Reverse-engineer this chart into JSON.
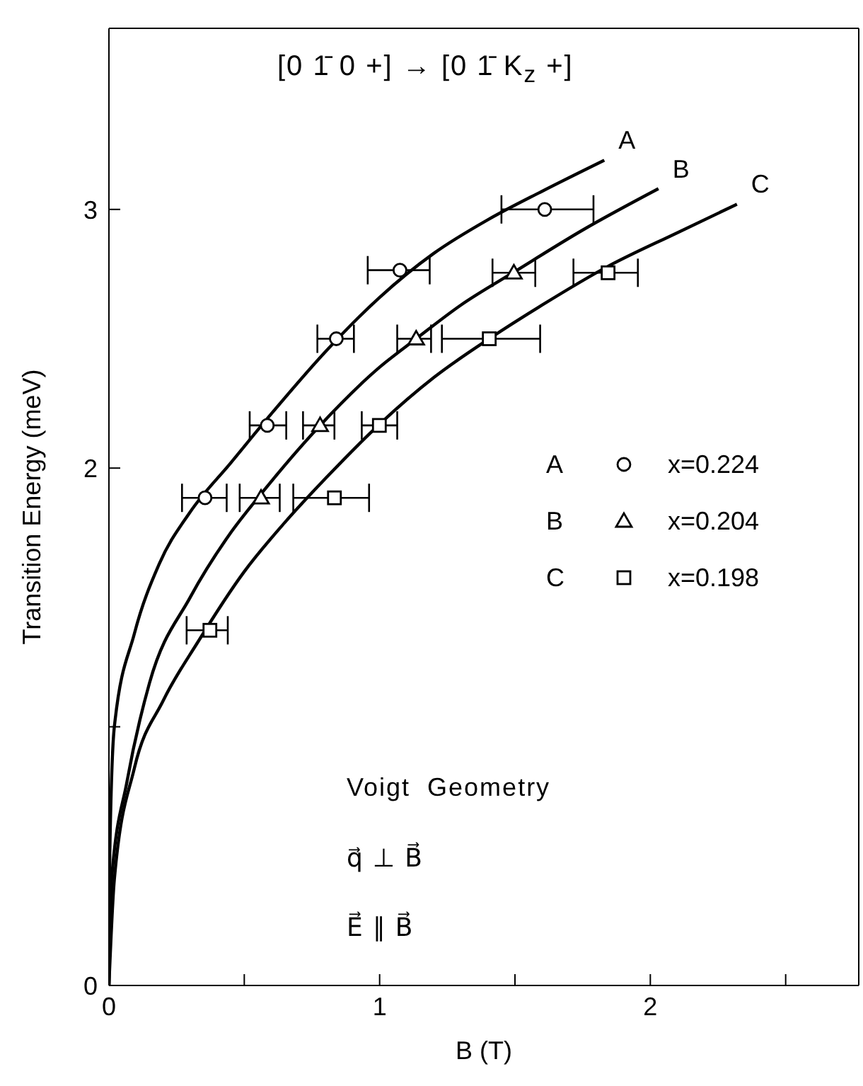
{
  "chart_data": {
    "type": "line",
    "xlabel": "B (T)",
    "ylabel": "Transition Energy  (meV)",
    "xlim": [
      0,
      2.77
    ],
    "ylim": [
      0,
      3.7
    ],
    "xticks": [
      0,
      {
        "value": 0.5,
        "label": null
      },
      1,
      {
        "value": 1.5,
        "label": null
      },
      2,
      {
        "value": 2.5,
        "label": null
      }
    ],
    "yticks": [
      0,
      {
        "value": 1,
        "label": null
      },
      2,
      3
    ],
    "legend": "right",
    "line_style": "solid",
    "annotations": [
      "[0 1̄ 0 +] → [0 1̄ K$_{z}$ +]",
      "Voigt  Geometry",
      "q⃗ ⊥ B⃗",
      "E⃗ ∥ B⃗"
    ],
    "series": [
      {
        "name": "A",
        "color": "#000000",
        "x": [
          0,
          0.003,
          0.02,
          0.094,
          0.186,
          0.3,
          0.45,
          0.6,
          0.8,
          1.0,
          1.2,
          1.4,
          1.6,
          1.83
        ],
        "values": [
          0,
          0.5,
          1.0,
          1.36,
          1.63,
          1.83,
          2.02,
          2.21,
          2.45,
          2.66,
          2.83,
          2.96,
          3.07,
          3.19
        ]
      },
      {
        "name": "B",
        "color": "#000000",
        "x": [
          0,
          0.01,
          0.067,
          0.15,
          0.3,
          0.443,
          0.562,
          0.78,
          1.0,
          1.135,
          1.3,
          1.5,
          1.75,
          2.03
        ],
        "values": [
          0,
          0.41,
          0.79,
          1.17,
          1.5,
          1.74,
          1.9,
          2.165,
          2.39,
          2.5,
          2.63,
          2.76,
          2.92,
          3.08
        ]
      },
      {
        "name": "C",
        "color": "#000000",
        "x": [
          0,
          0.02,
          0.094,
          0.2,
          0.33,
          0.5,
          0.65,
          0.8,
          1.0,
          1.2,
          1.405,
          1.6,
          1.844,
          2.1,
          2.32
        ],
        "values": [
          0,
          0.41,
          0.84,
          1.1,
          1.33,
          1.6,
          1.79,
          1.96,
          2.17,
          2.35,
          2.5,
          2.63,
          2.78,
          2.91,
          3.02
        ]
      },
      {
        "name": "x=0.224",
        "type": "scatter",
        "marker": "circle",
        "color": "#000000",
        "x": [
          0.355,
          0.585,
          0.84,
          1.075,
          1.61
        ],
        "values": [
          1.885,
          2.165,
          2.5,
          2.765,
          3.0
        ],
        "xerrors": [
          [
            0.27,
            0.435
          ],
          [
            0.52,
            0.655
          ],
          [
            0.77,
            0.905
          ],
          [
            0.956,
            1.185
          ],
          [
            1.45,
            1.79
          ]
        ]
      },
      {
        "name": "x=0.204",
        "type": "scatter",
        "marker": "triangle",
        "color": "#000000",
        "x": [
          0.562,
          0.78,
          1.135,
          1.496
        ],
        "values": [
          1.885,
          2.165,
          2.5,
          2.755
        ],
        "xerrors": [
          [
            0.483,
            0.631
          ],
          [
            0.717,
            0.833
          ],
          [
            1.065,
            1.19
          ],
          [
            1.417,
            1.575
          ]
        ]
      },
      {
        "name": "x=0.198",
        "type": "scatter",
        "marker": "square",
        "color": "#000000",
        "x": [
          0.373,
          0.833,
          0.999,
          1.405,
          1.844
        ],
        "values": [
          1.373,
          1.885,
          2.165,
          2.5,
          2.755
        ],
        "xerrors": [
          [
            0.287,
            0.439
          ],
          [
            0.681,
            0.961
          ],
          [
            0.934,
            1.065
          ],
          [
            1.23,
            1.593
          ],
          [
            1.716,
            1.954
          ]
        ]
      }
    ]
  }
}
